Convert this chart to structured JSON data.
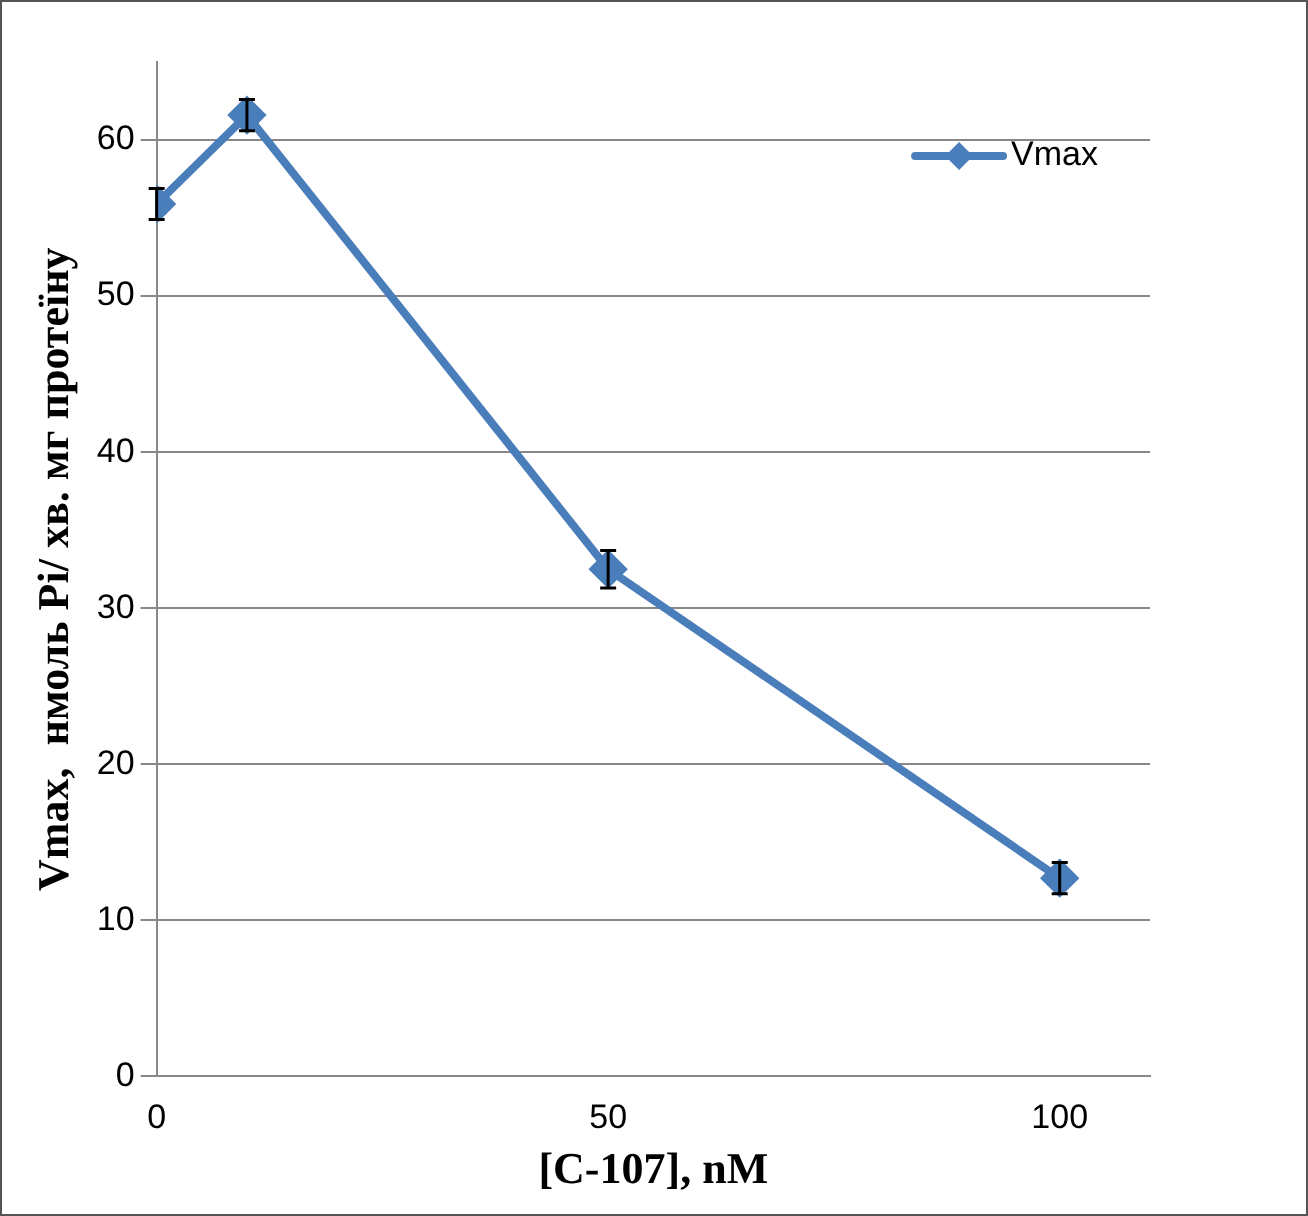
{
  "chart_data": {
    "type": "line",
    "xlabel": "[C-107], nM",
    "ylabel": "Vmax,  нмоль Pi/ хв. мг протеїну",
    "x": [
      0,
      10,
      50,
      100
    ],
    "series": [
      {
        "name": "Vmax",
        "color": "#4a7ebb",
        "values": [
          55.9,
          61.6,
          32.5,
          12.7
        ],
        "errors": [
          1,
          1,
          1.2,
          1
        ]
      }
    ],
    "xlim": [
      0,
      110
    ],
    "xticks": [
      0,
      50,
      100
    ],
    "ylim": [
      0,
      65
    ],
    "yticks": [
      0,
      10,
      20,
      30,
      40,
      50,
      60
    ],
    "grid": "y",
    "legend": "top right",
    "marker": "diamond",
    "line_style": "solid"
  }
}
